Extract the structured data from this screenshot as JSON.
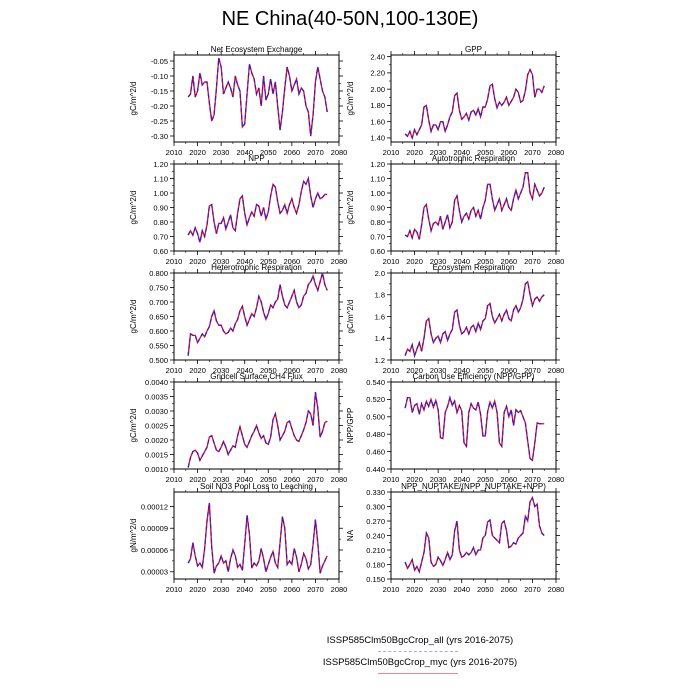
{
  "title": "NE China(40-50N,100-130E)",
  "legend": [
    {
      "label": "ISSP585Clm50BgcCrop_all (yrs 2016-2075)",
      "color": "#aaaaee",
      "style": "dashed"
    },
    {
      "label": "ISSP585Clm50BgcCrop_myc (yrs 2016-2075)",
      "color": "#ee8888",
      "style": "solid"
    }
  ],
  "colors": {
    "line_solid": "#ff0000",
    "line_dashed": "#2222dd"
  },
  "chart_data": [
    {
      "type": "line",
      "title": "Net Ecosystem Exchange",
      "ylabel": "gC/m^2/d",
      "xlim": [
        2010,
        2080
      ],
      "ylim": [
        -0.32,
        -0.03
      ],
      "yticks": [
        -0.3,
        -0.25,
        -0.2,
        -0.15,
        -0.1,
        -0.05
      ],
      "ytick_labels": [
        "-0.30",
        "-0.25",
        "-0.20",
        "-0.15",
        "-0.10",
        "-0.05"
      ],
      "xticks": [
        2010,
        2020,
        2030,
        2040,
        2050,
        2060,
        2070,
        2080
      ],
      "xtick_labels": [],
      "x_start": 2016,
      "values": [
        -0.17,
        -0.16,
        -0.1,
        -0.17,
        -0.15,
        -0.09,
        -0.13,
        -0.12,
        -0.12,
        -0.19,
        -0.25,
        -0.23,
        -0.14,
        -0.04,
        -0.07,
        -0.16,
        -0.14,
        -0.12,
        -0.14,
        -0.17,
        -0.1,
        -0.13,
        -0.15,
        -0.27,
        -0.26,
        -0.16,
        -0.06,
        -0.09,
        -0.11,
        -0.16,
        -0.14,
        -0.2,
        -0.1,
        -0.18,
        -0.16,
        -0.11,
        -0.16,
        -0.12,
        -0.2,
        -0.28,
        -0.22,
        -0.14,
        -0.07,
        -0.1,
        -0.15,
        -0.13,
        -0.11,
        -0.16,
        -0.14,
        -0.15,
        -0.2,
        -0.22,
        -0.3,
        -0.23,
        -0.12,
        -0.07,
        -0.11,
        -0.15,
        -0.17,
        -0.22
      ]
    },
    {
      "type": "line",
      "title": "GPP",
      "ylabel": "gC/m^2/d",
      "xlim": [
        2010,
        2080
      ],
      "ylim": [
        1.35,
        2.42
      ],
      "yticks": [
        1.4,
        1.6,
        1.8,
        2.0,
        2.2,
        2.4
      ],
      "ytick_labels": [
        "1.40",
        "1.60",
        "1.80",
        "2.00",
        "2.20",
        "2.40"
      ],
      "xticks": [
        2010,
        2020,
        2030,
        2040,
        2050,
        2060,
        2070,
        2080
      ],
      "xtick_labels": [],
      "x_start": 2016,
      "values": [
        1.45,
        1.42,
        1.48,
        1.4,
        1.5,
        1.44,
        1.5,
        1.56,
        1.78,
        1.8,
        1.62,
        1.48,
        1.56,
        1.56,
        1.5,
        1.6,
        1.6,
        1.48,
        1.56,
        1.66,
        1.72,
        1.92,
        1.95,
        1.74,
        1.63,
        1.66,
        1.7,
        1.62,
        1.72,
        1.74,
        1.68,
        1.76,
        1.66,
        1.78,
        1.78,
        1.88,
        2.04,
        2.06,
        1.88,
        1.77,
        1.84,
        1.8,
        1.84,
        1.9,
        1.8,
        1.85,
        1.9,
        2.0,
        1.96,
        1.84,
        1.86,
        1.98,
        2.18,
        2.24,
        2.18,
        1.9,
        2.0,
        2.0,
        1.96,
        2.04
      ]
    },
    {
      "type": "line",
      "title": "NPP",
      "ylabel": "gC/m^2/d",
      "xlim": [
        2010,
        2080
      ],
      "ylim": [
        0.6,
        1.2
      ],
      "yticks": [
        0.6,
        0.7,
        0.8,
        0.9,
        1.0,
        1.1,
        1.2
      ],
      "ytick_labels": [
        "0.60",
        "0.70",
        "0.80",
        "0.90",
        "1.00",
        "1.10",
        "1.20"
      ],
      "xticks": [
        2010,
        2020,
        2030,
        2040,
        2050,
        2060,
        2070,
        2080
      ],
      "xtick_labels": [],
      "x_start": 2016,
      "values": [
        0.71,
        0.74,
        0.71,
        0.76,
        0.72,
        0.66,
        0.74,
        0.7,
        0.78,
        0.91,
        0.92,
        0.8,
        0.72,
        0.79,
        0.79,
        0.83,
        0.75,
        0.8,
        0.85,
        0.76,
        0.74,
        0.86,
        0.96,
        0.98,
        0.86,
        0.78,
        0.83,
        0.87,
        0.84,
        0.92,
        0.91,
        0.84,
        0.9,
        0.82,
        0.87,
        0.98,
        1.06,
        1.04,
        0.94,
        0.86,
        0.88,
        0.92,
        0.86,
        0.92,
        0.96,
        0.9,
        0.86,
        0.92,
        1.01,
        1.08,
        1.06,
        1.1,
        0.98,
        0.9,
        0.96,
        1.0,
        0.96,
        0.97,
        0.99,
        0.99
      ]
    },
    {
      "type": "line",
      "title": "Autotrophic Respiration",
      "ylabel": "gC/m^2/d",
      "xlim": [
        2010,
        2080
      ],
      "ylim": [
        0.6,
        1.2
      ],
      "yticks": [
        0.6,
        0.7,
        0.8,
        0.9,
        1.0,
        1.1,
        1.2
      ],
      "ytick_labels": [
        "0.60",
        "0.70",
        "0.80",
        "0.90",
        "1.00",
        "1.10",
        "1.20"
      ],
      "xticks": [
        2010,
        2020,
        2030,
        2040,
        2050,
        2060,
        2070,
        2080
      ],
      "xtick_labels": [],
      "x_start": 2016,
      "values": [
        0.71,
        0.7,
        0.74,
        0.69,
        0.75,
        0.73,
        0.68,
        0.78,
        0.9,
        0.92,
        0.82,
        0.74,
        0.79,
        0.8,
        0.78,
        0.84,
        0.75,
        0.8,
        0.85,
        0.76,
        0.8,
        0.95,
        0.98,
        0.88,
        0.8,
        0.84,
        0.86,
        0.82,
        0.88,
        0.9,
        0.84,
        0.88,
        0.82,
        0.9,
        0.95,
        1.06,
        1.06,
        0.96,
        0.88,
        0.92,
        0.96,
        0.88,
        0.92,
        0.96,
        0.9,
        0.88,
        0.96,
        1.02,
        0.96,
        1.0,
        1.04,
        1.14,
        1.14,
        1.0,
        0.96,
        1.06,
        1.02,
        0.98,
        1.0,
        1.04
      ]
    },
    {
      "type": "line",
      "title": "Heterotrophic Respiration",
      "ylabel": "gC/m^2/d",
      "xlim": [
        2010,
        2080
      ],
      "ylim": [
        0.5,
        0.8
      ],
      "yticks": [
        0.5,
        0.55,
        0.6,
        0.65,
        0.7,
        0.75,
        0.8
      ],
      "ytick_labels": [
        "0.500",
        "0.550",
        "0.600",
        "0.650",
        "0.700",
        "0.750",
        "0.800"
      ],
      "xticks": [
        2010,
        2020,
        2030,
        2040,
        2050,
        2060,
        2070,
        2080
      ],
      "xtick_labels": [],
      "x_start": 2016,
      "values": [
        0.515,
        0.59,
        0.585,
        0.585,
        0.56,
        0.575,
        0.59,
        0.58,
        0.6,
        0.615,
        0.65,
        0.67,
        0.635,
        0.62,
        0.62,
        0.6,
        0.59,
        0.595,
        0.61,
        0.6,
        0.625,
        0.64,
        0.67,
        0.685,
        0.65,
        0.62,
        0.64,
        0.66,
        0.65,
        0.68,
        0.72,
        0.7,
        0.665,
        0.64,
        0.66,
        0.69,
        0.68,
        0.7,
        0.71,
        0.76,
        0.72,
        0.69,
        0.68,
        0.7,
        0.72,
        0.74,
        0.7,
        0.68,
        0.69,
        0.72,
        0.73,
        0.76,
        0.77,
        0.79,
        0.76,
        0.74,
        0.77,
        0.8,
        0.76,
        0.74
      ]
    },
    {
      "type": "line",
      "title": "Ecosystem Respiration",
      "ylabel": "gC/m^2/d",
      "xlim": [
        2010,
        2080
      ],
      "ylim": [
        1.2,
        2.0
      ],
      "yticks": [
        1.2,
        1.4,
        1.6,
        1.8,
        2.0
      ],
      "ytick_labels": [
        "1.2",
        "1.4",
        "1.6",
        "1.8",
        "2.0"
      ],
      "xticks": [
        2010,
        2020,
        2030,
        2040,
        2050,
        2060,
        2070,
        2080
      ],
      "xtick_labels": [],
      "x_start": 2016,
      "values": [
        1.24,
        1.3,
        1.28,
        1.34,
        1.24,
        1.3,
        1.36,
        1.28,
        1.4,
        1.56,
        1.58,
        1.44,
        1.36,
        1.4,
        1.42,
        1.36,
        1.44,
        1.46,
        1.38,
        1.44,
        1.48,
        1.64,
        1.66,
        1.52,
        1.44,
        1.46,
        1.5,
        1.44,
        1.5,
        1.52,
        1.46,
        1.54,
        1.48,
        1.56,
        1.58,
        1.7,
        1.72,
        1.6,
        1.54,
        1.58,
        1.62,
        1.56,
        1.62,
        1.66,
        1.58,
        1.56,
        1.66,
        1.7,
        1.64,
        1.68,
        1.76,
        1.9,
        1.92,
        1.8,
        1.7,
        1.76,
        1.78,
        1.74,
        1.78,
        1.8
      ]
    },
    {
      "type": "line",
      "title": "Gridcell Surface CH4 Flux",
      "ylabel": "gC/m^2/d",
      "xlim": [
        2010,
        2080
      ],
      "ylim": [
        0.001,
        0.004
      ],
      "yticks": [
        0.001,
        0.0015,
        0.002,
        0.0025,
        0.003,
        0.0035,
        0.004
      ],
      "ytick_labels": [
        "0.0010",
        "0.0015",
        "0.0020",
        "0.0025",
        "0.0030",
        "0.0035",
        "0.0040"
      ],
      "xticks": [
        2010,
        2020,
        2030,
        2040,
        2050,
        2060,
        2070,
        2080
      ],
      "xtick_labels": [],
      "x_start": 2016,
      "values": [
        0.00105,
        0.0014,
        0.0016,
        0.00165,
        0.00155,
        0.0013,
        0.00145,
        0.0016,
        0.00175,
        0.0021,
        0.00215,
        0.0019,
        0.00165,
        0.0016,
        0.00175,
        0.00195,
        0.00175,
        0.0015,
        0.00165,
        0.0018,
        0.00175,
        0.00215,
        0.00245,
        0.00215,
        0.00185,
        0.00175,
        0.00195,
        0.00215,
        0.0023,
        0.0025,
        0.00225,
        0.00205,
        0.00215,
        0.0019,
        0.00185,
        0.0021,
        0.0027,
        0.0029,
        0.0025,
        0.002,
        0.00215,
        0.0023,
        0.0026,
        0.00265,
        0.0024,
        0.00215,
        0.002,
        0.00195,
        0.00215,
        0.00235,
        0.0026,
        0.003,
        0.0029,
        0.0025,
        0.00365,
        0.0031,
        0.0021,
        0.0023,
        0.0026,
        0.00265
      ]
    },
    {
      "type": "line",
      "title": "Carbon Use Efficiency (NPP/GPP)",
      "ylabel": "NPP/GPP",
      "xlim": [
        2010,
        2080
      ],
      "ylim": [
        0.44,
        0.54
      ],
      "yticks": [
        0.44,
        0.46,
        0.48,
        0.5,
        0.52,
        0.54
      ],
      "ytick_labels": [
        "0.440",
        "0.460",
        "0.480",
        "0.500",
        "0.520",
        "0.540"
      ],
      "xticks": [
        2010,
        2020,
        2030,
        2040,
        2050,
        2060,
        2070,
        2080
      ],
      "xtick_labels": [],
      "x_start": 2016,
      "values": [
        0.51,
        0.522,
        0.522,
        0.505,
        0.513,
        0.515,
        0.503,
        0.515,
        0.508,
        0.518,
        0.512,
        0.52,
        0.511,
        0.519,
        0.508,
        0.476,
        0.475,
        0.505,
        0.512,
        0.522,
        0.513,
        0.518,
        0.505,
        0.513,
        0.507,
        0.47,
        0.466,
        0.505,
        0.515,
        0.51,
        0.508,
        0.517,
        0.503,
        0.478,
        0.478,
        0.506,
        0.517,
        0.51,
        0.518,
        0.505,
        0.47,
        0.466,
        0.505,
        0.512,
        0.5,
        0.508,
        0.49,
        0.508,
        0.505,
        0.507,
        0.5,
        0.493,
        0.472,
        0.452,
        0.45,
        0.47,
        0.493,
        0.492,
        0.492,
        0.492
      ]
    },
    {
      "type": "line",
      "title": "Soil NO3 Pool Loss to Leaching",
      "ylabel": "gN/m^2/d",
      "xlim": [
        2010,
        2080
      ],
      "ylim": [
        2e-05,
        0.00014
      ],
      "yticks": [
        3e-05,
        6e-05,
        9e-05,
        0.00012
      ],
      "ytick_labels": [
        "0.00003",
        "0.00006",
        "0.00009",
        "0.00012"
      ],
      "xticks": [
        2010,
        2020,
        2030,
        2040,
        2050,
        2060,
        2070,
        2080
      ],
      "xtick_labels": [
        "2010",
        "2020",
        "2030",
        "2040",
        "2050",
        "2060",
        "2070",
        "2080"
      ],
      "x_start": 2016,
      "values": [
        4.2e-05,
        4.8e-05,
        7e-05,
        5.2e-05,
        3.8e-05,
        4.2e-05,
        3.6e-05,
        6.2e-05,
        0.0001,
        0.000125,
        6.5e-05,
        2.8e-05,
        3.8e-05,
        4.2e-05,
        5.2e-05,
        4.2e-05,
        4.5e-05,
        3e-05,
        4.8e-05,
        6e-05,
        5.2e-05,
        3.6e-05,
        4e-05,
        3.2e-05,
        6.8e-05,
        0.000108,
        8.2e-05,
        3.5e-05,
        4.2e-05,
        3.8e-05,
        4.5e-05,
        6.2e-05,
        4.8e-05,
        3e-05,
        4e-05,
        5e-05,
        5.8e-05,
        4.2e-05,
        3.6e-05,
        7e-05,
        0.000106,
        9e-05,
        4e-05,
        4.5e-05,
        4e-05,
        6.2e-05,
        5e-05,
        3e-05,
        4e-05,
        5.5e-05,
        4.8e-05,
        3.4e-05,
        4e-05,
        6.8e-05,
        0.000102,
        7e-05,
        2.8e-05,
        3.8e-05,
        4.5e-05,
        5.2e-05
      ]
    },
    {
      "type": "line",
      "title": "NPP_NUPTAKE/(NPP_NUPTAKE+NPP)",
      "ylabel": "NA",
      "xlim": [
        2010,
        2080
      ],
      "ylim": [
        0.15,
        0.33
      ],
      "yticks": [
        0.15,
        0.18,
        0.21,
        0.24,
        0.27,
        0.3,
        0.33
      ],
      "ytick_labels": [
        "0.150",
        "0.180",
        "0.210",
        "0.240",
        "0.270",
        "0.300",
        "0.330"
      ],
      "xticks": [
        2010,
        2020,
        2030,
        2040,
        2050,
        2060,
        2070,
        2080
      ],
      "xtick_labels": [
        "2010",
        "2020",
        "2030",
        "2040",
        "2050",
        "2060",
        "2070",
        "2080"
      ],
      "x_start": 2016,
      "values": [
        0.185,
        0.172,
        0.18,
        0.19,
        0.168,
        0.176,
        0.165,
        0.185,
        0.205,
        0.245,
        0.235,
        0.185,
        0.176,
        0.18,
        0.195,
        0.188,
        0.178,
        0.19,
        0.205,
        0.19,
        0.2,
        0.25,
        0.27,
        0.21,
        0.195,
        0.198,
        0.205,
        0.2,
        0.205,
        0.215,
        0.2,
        0.21,
        0.21,
        0.235,
        0.24,
        0.268,
        0.272,
        0.24,
        0.235,
        0.23,
        0.225,
        0.265,
        0.27,
        0.25,
        0.215,
        0.218,
        0.225,
        0.222,
        0.235,
        0.24,
        0.245,
        0.28,
        0.27,
        0.31,
        0.318,
        0.3,
        0.305,
        0.26,
        0.245,
        0.24
      ]
    }
  ]
}
